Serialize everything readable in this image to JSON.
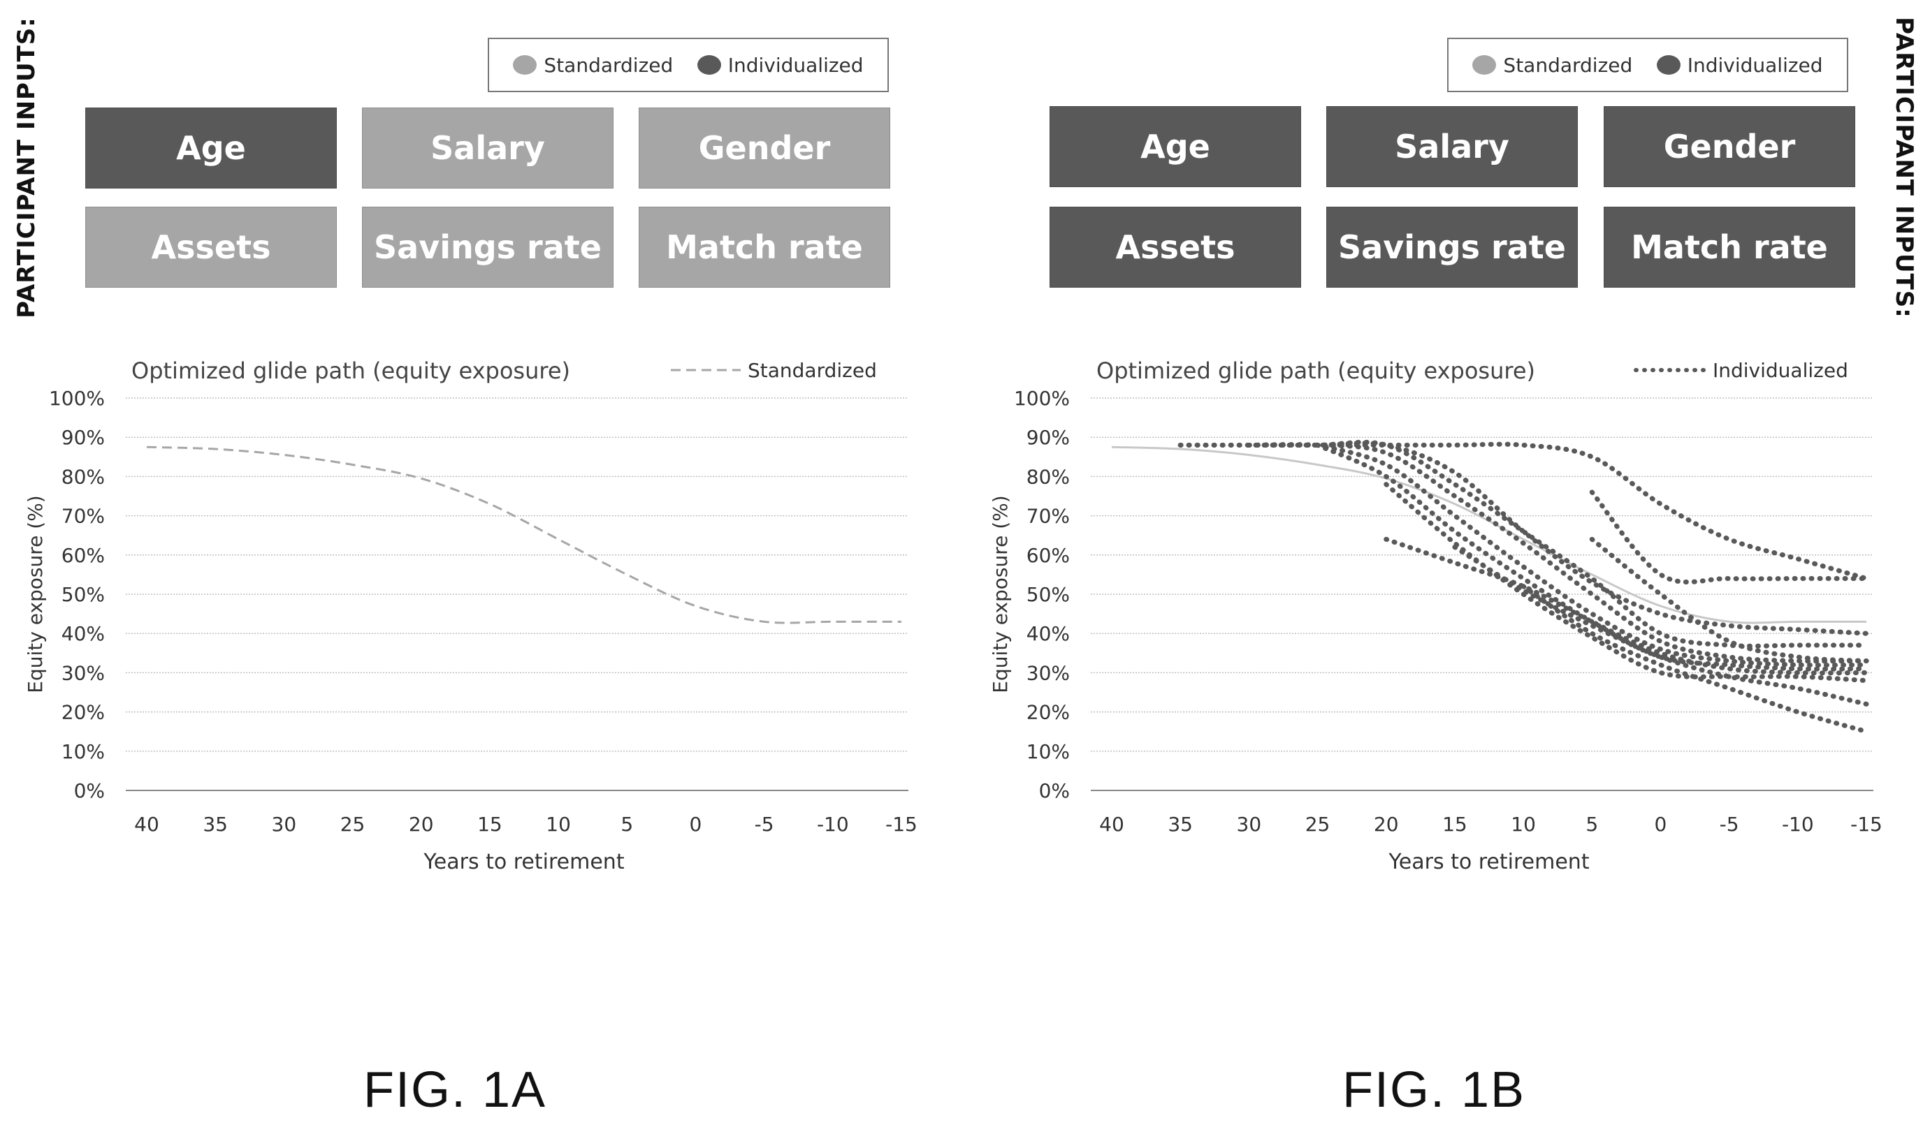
{
  "colors": {
    "standardized": "#a6a6a6",
    "individualized": "#595959",
    "grid": "#bfbfbf",
    "axis_text": "#333333"
  },
  "panels": [
    {
      "id": "a",
      "side_label": "PARTICIPANT INPUTS:",
      "legend": [
        {
          "label": "Standardized",
          "color": "#a6a6a6"
        },
        {
          "label": "Individualized",
          "color": "#595959"
        }
      ],
      "inputs": [
        {
          "label": "Age",
          "status": "individualized"
        },
        {
          "label": "Salary",
          "status": "standardized"
        },
        {
          "label": "Gender",
          "status": "standardized"
        },
        {
          "label": "Assets",
          "status": "standardized"
        },
        {
          "label": "Savings rate",
          "status": "standardized"
        },
        {
          "label": "Match rate",
          "status": "standardized"
        }
      ],
      "figure_label": "FIG. 1A"
    },
    {
      "id": "b",
      "side_label": "PARTICIPANT INPUTS:",
      "legend": [
        {
          "label": "Standardized",
          "color": "#a6a6a6"
        },
        {
          "label": "Individualized",
          "color": "#595959"
        }
      ],
      "inputs": [
        {
          "label": "Age",
          "status": "individualized"
        },
        {
          "label": "Salary",
          "status": "individualized"
        },
        {
          "label": "Gender",
          "status": "individualized"
        },
        {
          "label": "Assets",
          "status": "individualized"
        },
        {
          "label": "Savings rate",
          "status": "individualized"
        },
        {
          "label": "Match rate",
          "status": "individualized"
        }
      ],
      "figure_label": "FIG. 1B"
    }
  ],
  "chart_data": [
    {
      "type": "line",
      "title": "Optimized glide path (equity exposure)",
      "xlabel": "Years to retirement",
      "ylabel": "Equity exposure (%)",
      "xlim": [
        40,
        -15
      ],
      "x_ticks": [
        40,
        35,
        30,
        25,
        20,
        15,
        10,
        5,
        0,
        -5,
        -10,
        -15
      ],
      "x_tick_labels": [
        "40",
        "35",
        "30",
        "25",
        "20",
        "15",
        "10",
        "5",
        "0",
        "-5",
        "-10",
        "-15"
      ],
      "ylim": [
        0,
        100
      ],
      "y_ticks": [
        0,
        10,
        20,
        30,
        40,
        50,
        60,
        70,
        80,
        90,
        100
      ],
      "y_tick_labels": [
        "0%",
        "10%",
        "20%",
        "30%",
        "40%",
        "50%",
        "60%",
        "70%",
        "80%",
        "90%",
        "100%"
      ],
      "grid": "horizontal",
      "legend_position": "top-right",
      "series": [
        {
          "name": "Standardized",
          "style": "dashed",
          "color": "#a6a6a6",
          "x": [
            40,
            35,
            30,
            25,
            20,
            15,
            10,
            5,
            0,
            -5,
            -10,
            -15
          ],
          "y": [
            87.5,
            87,
            85.5,
            83,
            79.5,
            73,
            64,
            55,
            47,
            43,
            43,
            43
          ]
        }
      ]
    },
    {
      "type": "line",
      "title": "Optimized glide path (equity exposure)",
      "xlabel": "Years to retirement",
      "ylabel": "Equity exposure (%)",
      "xlim": [
        40,
        -15
      ],
      "x_ticks": [
        40,
        35,
        30,
        25,
        20,
        15,
        10,
        5,
        0,
        -5,
        -10,
        -15
      ],
      "x_tick_labels": [
        "40",
        "35",
        "30",
        "25",
        "20",
        "15",
        "10",
        "5",
        "0",
        "-5",
        "-10",
        "-15"
      ],
      "ylim": [
        0,
        100
      ],
      "y_ticks": [
        0,
        10,
        20,
        30,
        40,
        50,
        60,
        70,
        80,
        90,
        100
      ],
      "y_tick_labels": [
        "0%",
        "10%",
        "20%",
        "30%",
        "40%",
        "50%",
        "60%",
        "70%",
        "80%",
        "90%",
        "100%"
      ],
      "grid": "horizontal",
      "legend_position": "top-right",
      "series": [
        {
          "name": "",
          "style": "solid",
          "color": "#c8c8c8",
          "x": [
            40,
            35,
            30,
            25,
            20,
            15,
            10,
            5,
            0,
            -5,
            -10,
            -15
          ],
          "y": [
            87.5,
            87,
            85.5,
            83,
            79.5,
            73,
            64,
            55,
            47,
            43,
            43,
            43
          ]
        },
        {
          "name": "Individualized",
          "style": "dotted",
          "color": "#595959",
          "x": [
            35,
            30,
            25,
            20,
            15,
            10,
            5,
            0,
            -5,
            -10,
            -15
          ],
          "y": [
            88,
            88,
            88,
            88,
            88,
            88,
            85,
            73,
            64,
            59,
            54
          ]
        },
        {
          "name": "",
          "style": "dotted",
          "color": "#595959",
          "x": [
            5,
            0,
            -5,
            -10,
            -15
          ],
          "y": [
            76,
            55,
            54,
            54,
            54
          ]
        },
        {
          "name": "",
          "style": "dotted",
          "color": "#595959",
          "x": [
            35,
            30,
            25,
            20,
            15,
            10,
            5,
            0,
            -5,
            -10,
            -15
          ],
          "y": [
            88,
            88,
            88,
            88,
            81,
            66,
            53,
            45,
            42,
            41,
            40
          ]
        },
        {
          "name": "",
          "style": "dotted",
          "color": "#595959",
          "x": [
            30,
            25,
            20,
            15,
            10,
            5,
            0,
            -5,
            -10,
            -15
          ],
          "y": [
            88,
            88,
            88,
            78,
            66,
            54,
            40,
            37,
            37,
            37
          ]
        },
        {
          "name": "",
          "style": "dotted",
          "color": "#595959",
          "x": [
            30,
            25,
            20,
            15,
            10,
            5,
            0,
            -5,
            -10,
            -15
          ],
          "y": [
            88,
            88,
            86,
            75,
            63,
            50,
            38,
            34,
            33,
            33
          ]
        },
        {
          "name": "",
          "style": "dotted",
          "color": "#595959",
          "x": [
            25,
            20,
            15,
            10,
            5,
            0,
            -5,
            -10,
            -15
          ],
          "y": [
            88,
            83,
            70,
            57,
            45,
            36,
            33,
            32,
            32
          ]
        },
        {
          "name": "",
          "style": "dotted",
          "color": "#595959",
          "x": [
            25,
            20,
            15,
            10,
            5,
            0,
            -5,
            -10,
            -15
          ],
          "y": [
            88,
            80,
            66,
            54,
            43,
            34,
            32,
            31,
            31
          ]
        },
        {
          "name": "",
          "style": "dotted",
          "color": "#595959",
          "x": [
            5,
            0,
            -5,
            -10,
            -15
          ],
          "y": [
            64,
            50,
            38,
            34,
            33
          ]
        },
        {
          "name": "",
          "style": "dotted",
          "color": "#595959",
          "x": [
            20,
            15,
            10,
            5,
            0,
            -5,
            -10,
            -15
          ],
          "y": [
            64,
            58,
            52,
            43,
            35,
            31,
            30,
            30
          ]
        },
        {
          "name": "",
          "style": "dotted",
          "color": "#595959",
          "x": [
            20,
            15,
            10,
            5,
            0,
            -5,
            -10,
            -15
          ],
          "y": [
            78,
            63,
            50,
            39,
            30,
            29,
            29,
            28
          ]
        },
        {
          "name": "",
          "style": "dotted",
          "color": "#595959",
          "x": [
            15,
            10,
            5,
            0,
            -5,
            -10,
            -15
          ],
          "y": [
            62,
            51,
            42,
            34,
            29,
            26,
            22
          ]
        },
        {
          "name": "",
          "style": "dotted",
          "color": "#595959",
          "x": [
            10,
            5,
            0,
            -5,
            -10,
            -15
          ],
          "y": [
            52,
            40,
            32,
            26,
            20,
            15
          ]
        }
      ]
    }
  ]
}
